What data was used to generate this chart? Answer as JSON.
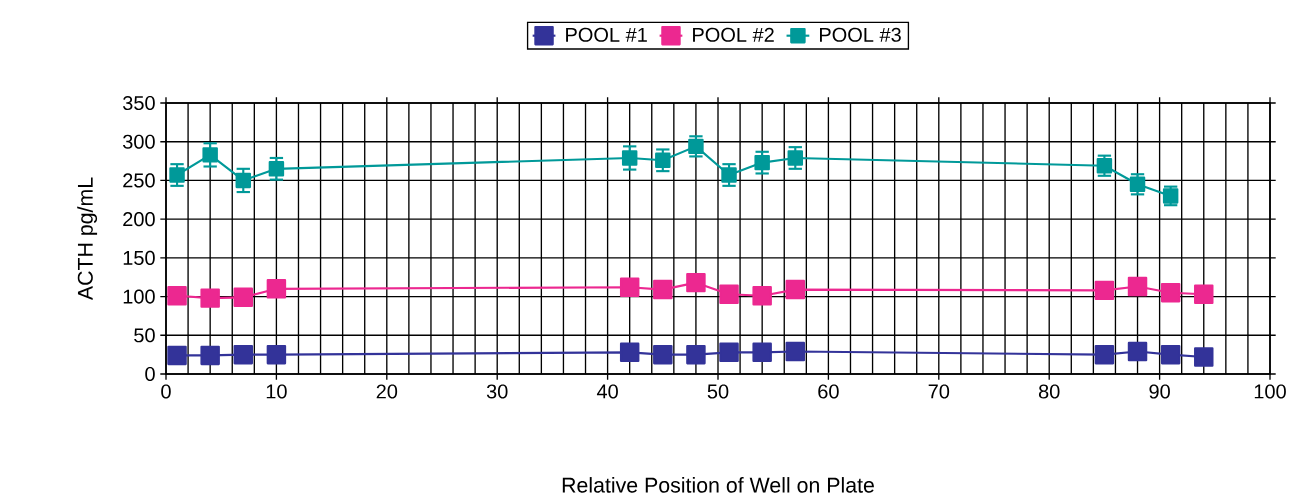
{
  "chart_data": {
    "type": "line",
    "xlabel": "Relative Position of Well on Plate",
    "ylabel": "ACTH pg/mL",
    "xlim": [
      0,
      100
    ],
    "xticks": [
      0,
      10,
      20,
      30,
      40,
      50,
      60,
      70,
      80,
      90,
      100
    ],
    "ylim": [
      0,
      350
    ],
    "yticks": [
      0,
      50,
      100,
      150,
      200,
      250,
      300,
      350
    ],
    "grid": true,
    "legend": "top",
    "marker": "square",
    "series": [
      {
        "name": "POOL #1",
        "color": "#333399",
        "x": [
          1,
          4,
          7,
          10,
          42,
          45,
          48,
          51,
          54,
          57,
          85,
          88,
          91,
          94
        ],
        "values": [
          24,
          24,
          25,
          25,
          28,
          25,
          25,
          28,
          28,
          29,
          25,
          29,
          25,
          22
        ]
      },
      {
        "name": "POOL #2",
        "color": "#ec2890",
        "x": [
          1,
          4,
          7,
          10,
          42,
          45,
          48,
          51,
          54,
          57,
          85,
          88,
          91,
          94
        ],
        "values": [
          101,
          98,
          99,
          110,
          112,
          109,
          118,
          103,
          101,
          109,
          108,
          113,
          105,
          103
        ]
      },
      {
        "name": "POOL #3",
        "color": "#009999",
        "x": [
          1,
          4,
          7,
          10,
          42,
          45,
          48,
          51,
          54,
          57,
          85,
          88,
          91
        ],
        "values": [
          257,
          283,
          250,
          265,
          279,
          276,
          294,
          257,
          273,
          279,
          269,
          245,
          230
        ],
        "errors": [
          14,
          15,
          15,
          14,
          15,
          14,
          13,
          14,
          14,
          14,
          13,
          13,
          12
        ]
      }
    ]
  }
}
